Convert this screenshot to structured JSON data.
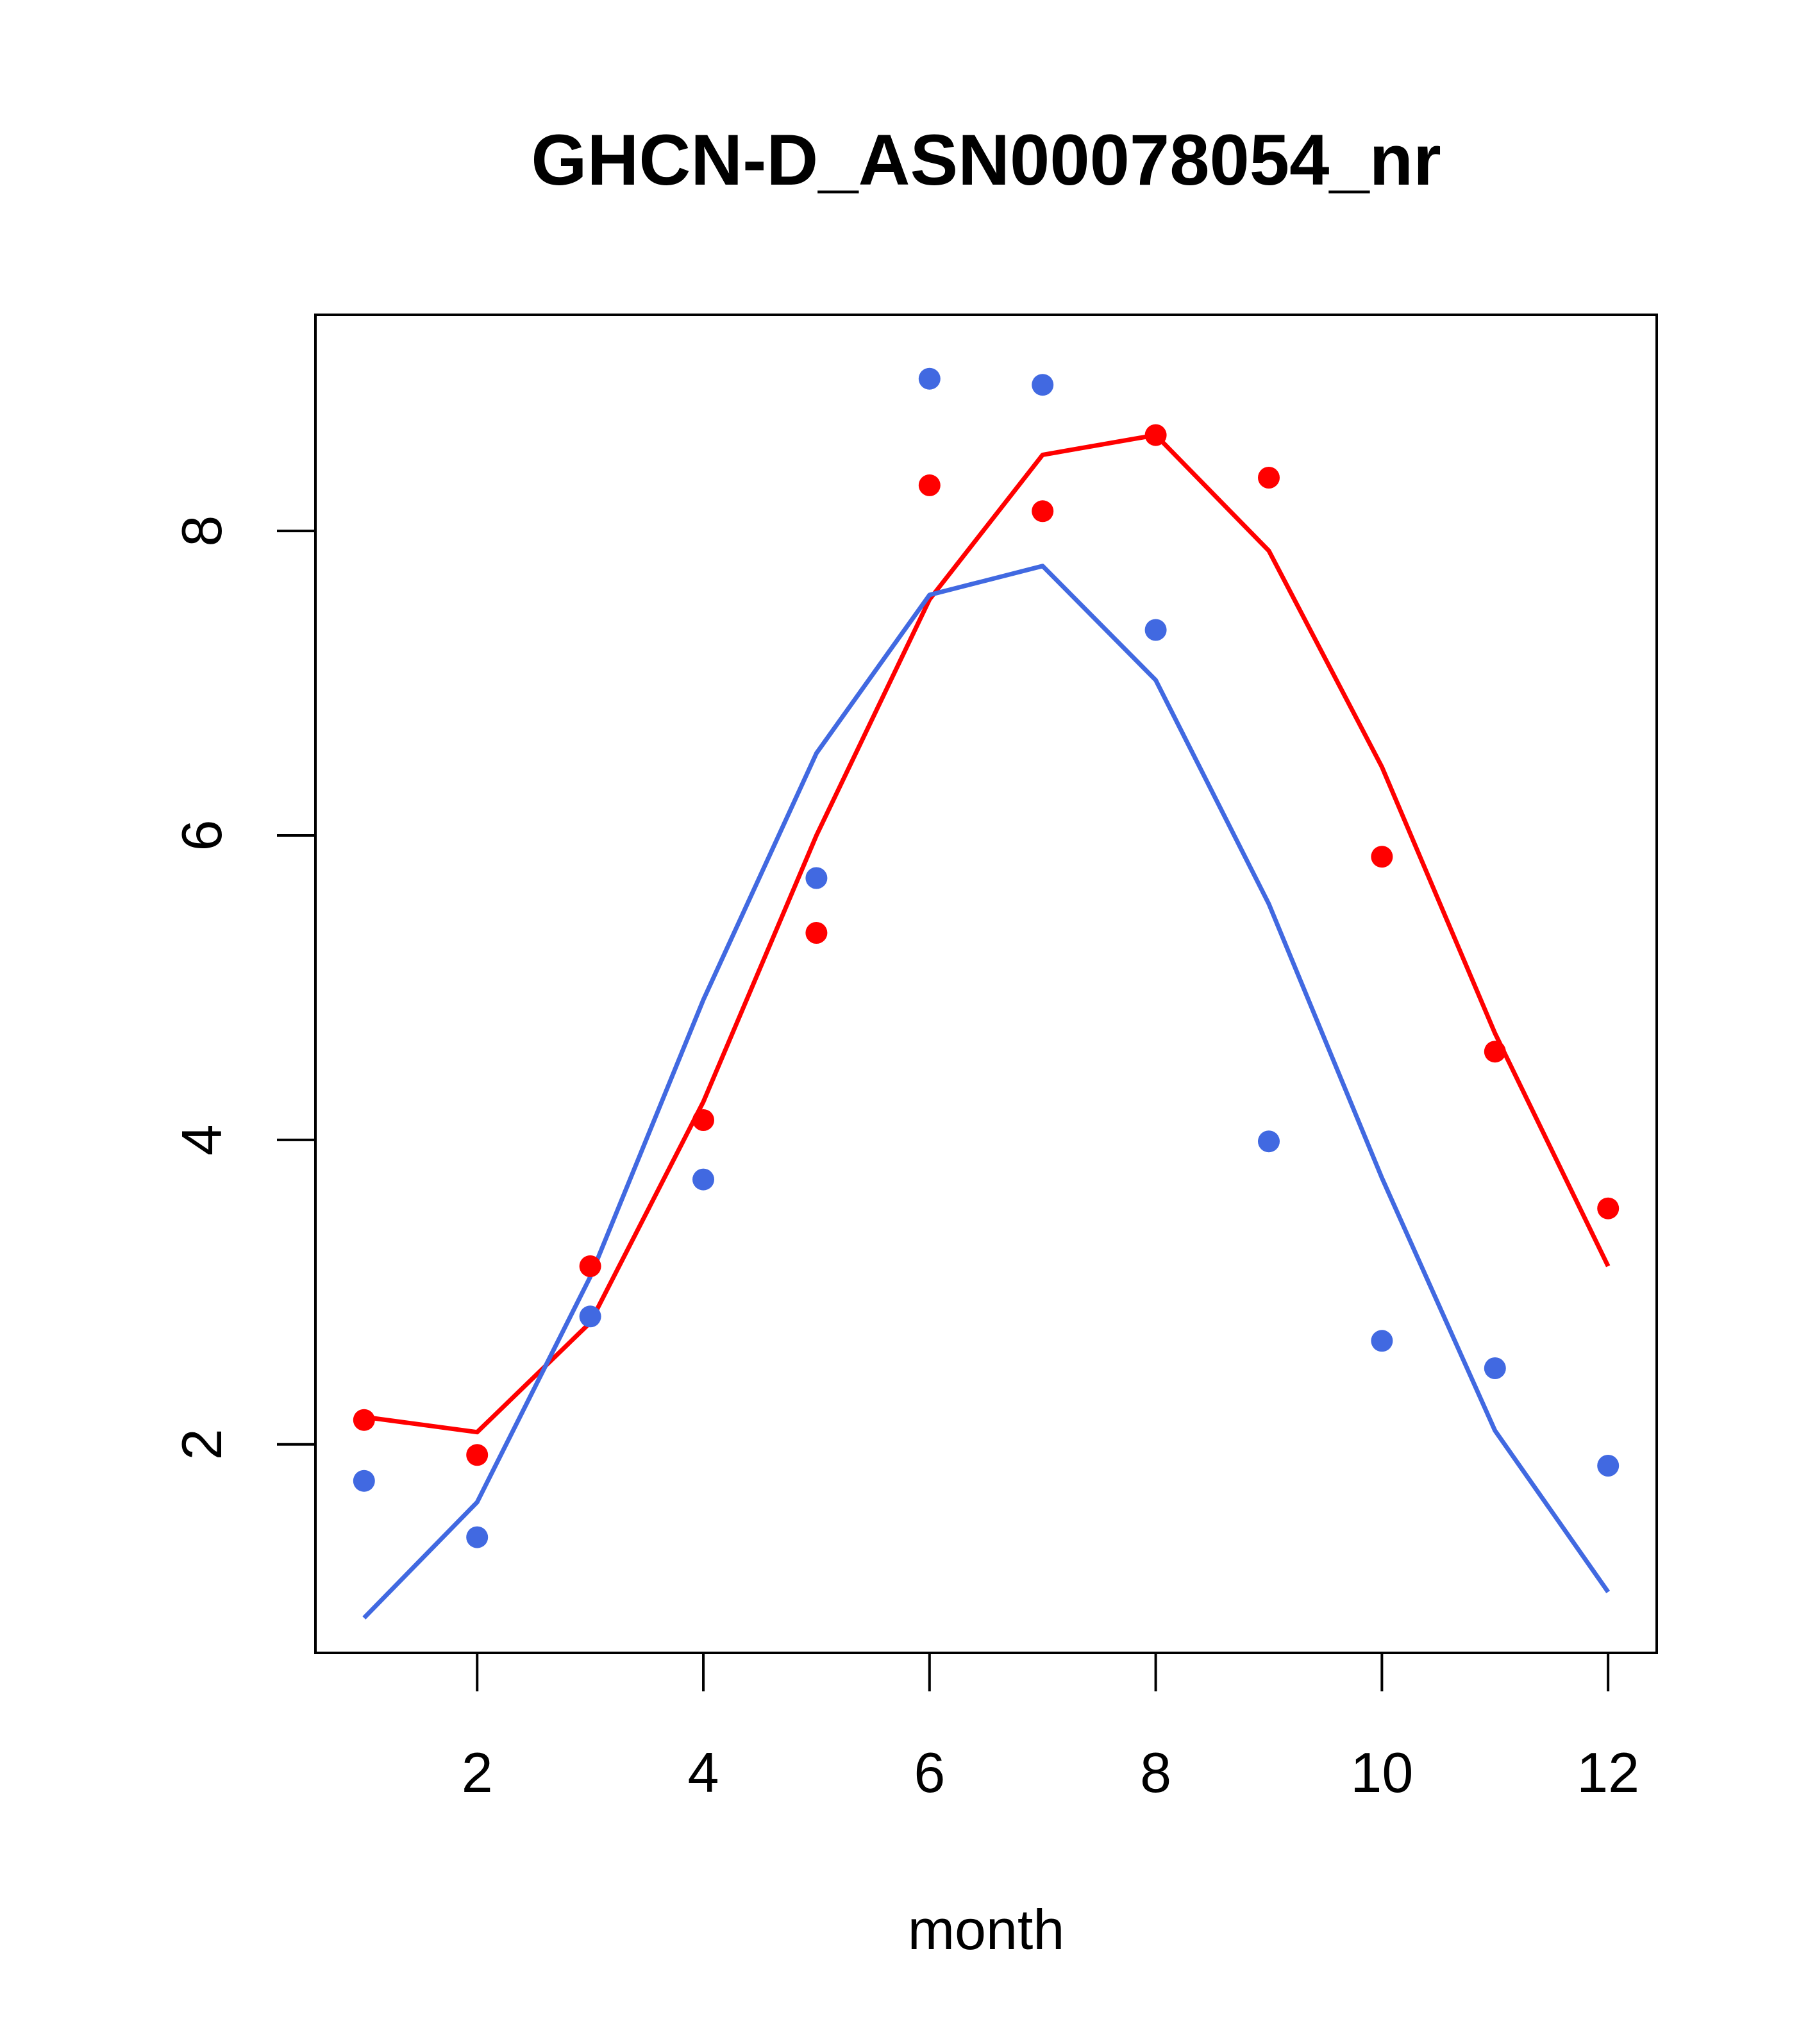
{
  "chart_data": {
    "type": "line",
    "title": "GHCN-D_ASN00078054_nr",
    "xlabel": "month",
    "ylabel": "",
    "xlim": [
      0.57,
      12.43
    ],
    "ylim": [
      0.63,
      9.42
    ],
    "x_ticks": [
      2,
      4,
      6,
      8,
      10,
      12
    ],
    "y_ticks": [
      2,
      4,
      6,
      8
    ],
    "grid": false,
    "legend": "none",
    "x": [
      1,
      2,
      3,
      4,
      5,
      6,
      7,
      8,
      9,
      10,
      11,
      12
    ],
    "series": [
      {
        "color": "#FF0000",
        "points": [
          2.16,
          1.93,
          3.17,
          4.13,
          5.36,
          8.3,
          8.13,
          8.63,
          8.35,
          5.86,
          4.58,
          3.55
        ],
        "line": [
          2.18,
          2.08,
          2.8,
          4.25,
          6.0,
          7.55,
          8.5,
          8.63,
          7.87,
          6.45,
          4.7,
          3.17
        ]
      },
      {
        "color": "#4169E1",
        "points": [
          1.76,
          1.39,
          2.84,
          3.74,
          5.72,
          9.0,
          8.96,
          7.35,
          3.99,
          2.68,
          2.5,
          1.86
        ],
        "line": [
          0.86,
          1.62,
          3.1,
          4.92,
          6.54,
          7.58,
          7.77,
          7.02,
          5.55,
          3.75,
          2.09,
          1.03
        ]
      }
    ]
  }
}
